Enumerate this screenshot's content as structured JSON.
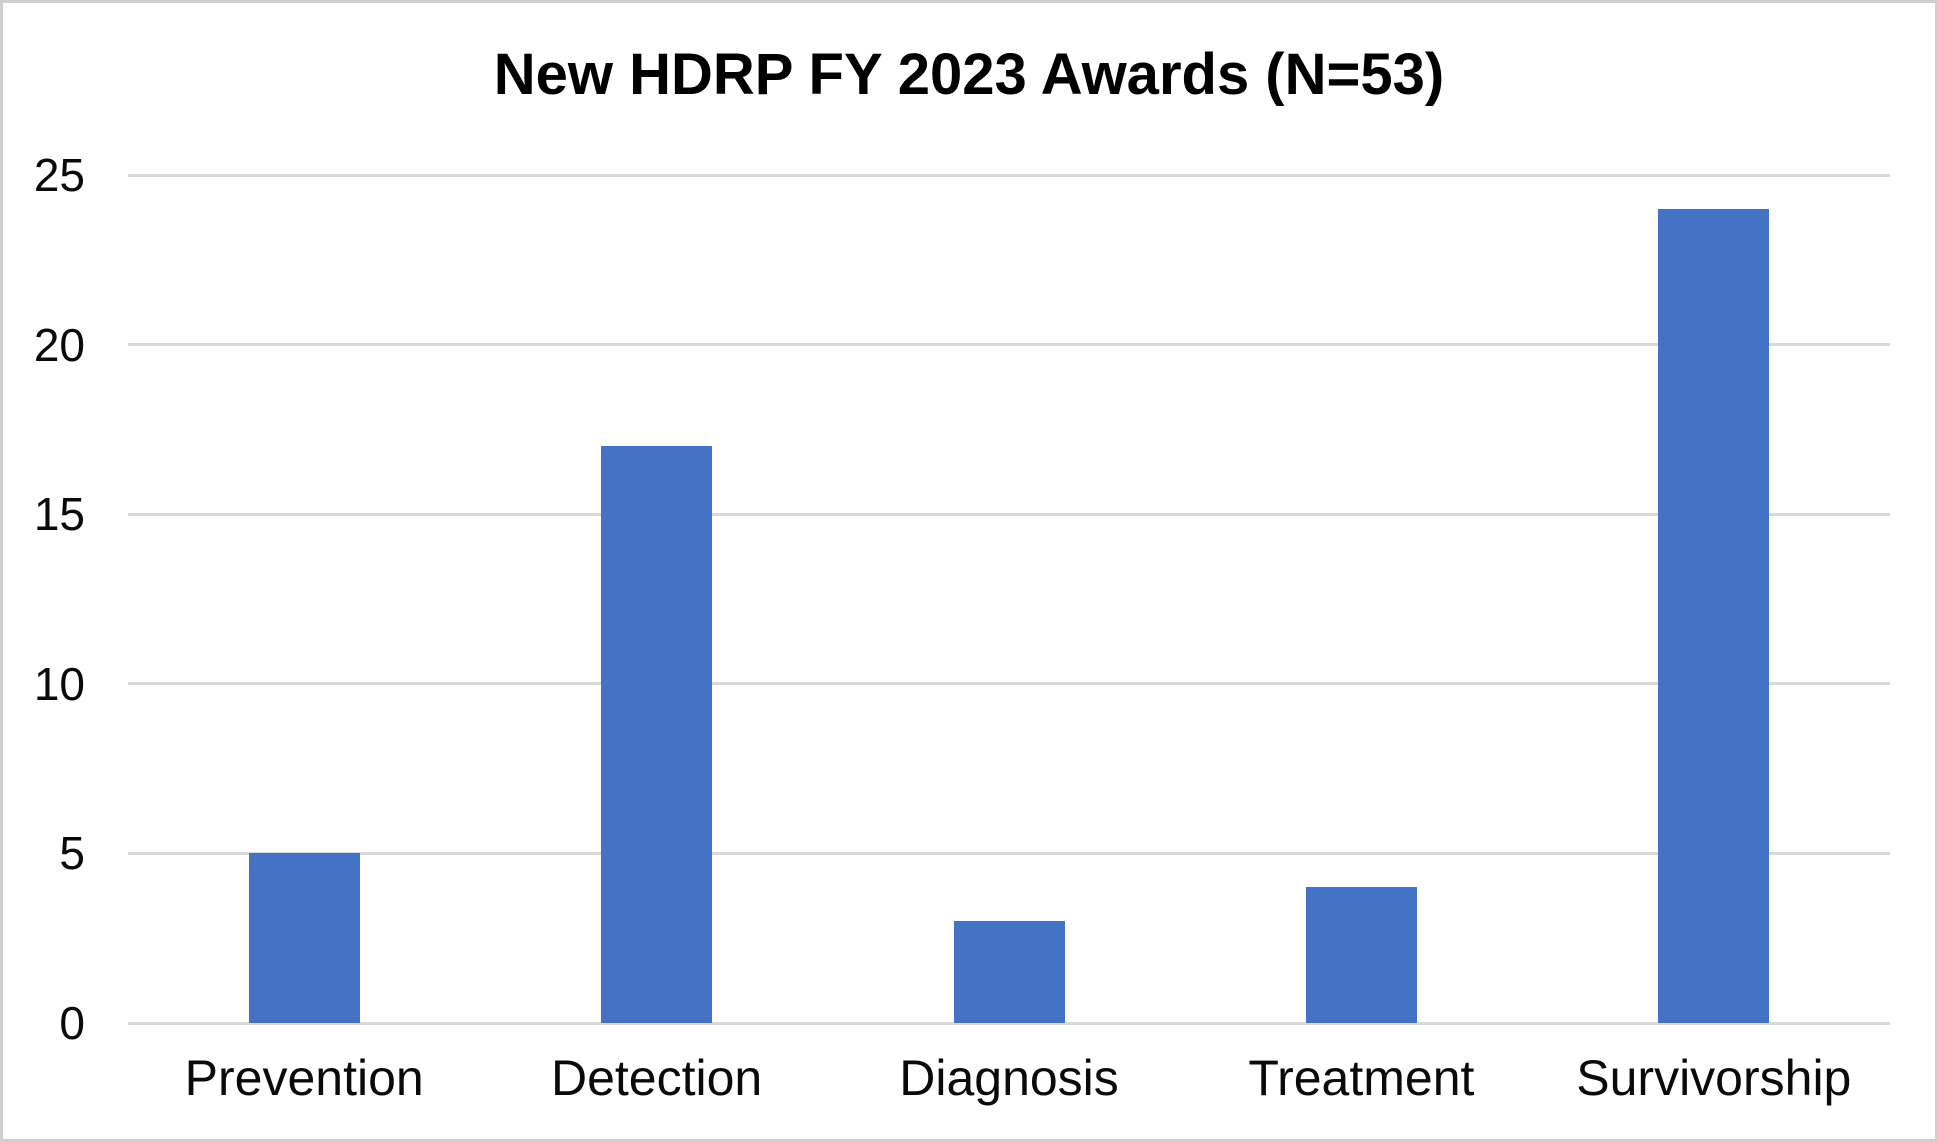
{
  "chart_data": {
    "type": "bar",
    "title": "New HDRP FY 2023 Awards (N=53)",
    "categories": [
      "Prevention",
      "Detection",
      "Diagnosis",
      "Treatment",
      "Survivorship"
    ],
    "values": [
      5,
      17,
      3,
      4,
      24
    ],
    "total_n": 53,
    "xlabel": "",
    "ylabel": "",
    "ylim": [
      0,
      25
    ],
    "yticks": [
      0,
      5,
      10,
      15,
      20,
      25
    ],
    "grid": "horizontal",
    "legend": "none",
    "colors": {
      "bar": "#4472C4",
      "gridline": "#D9D9D9",
      "axis_line": "#D9D9D9",
      "title_text": "#000000",
      "tick_text": "#0A0A0A",
      "frame_border": "#CFCFCF",
      "background": "#FFFFFF"
    }
  }
}
